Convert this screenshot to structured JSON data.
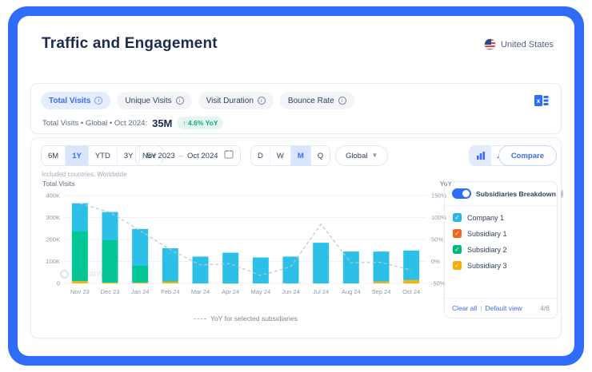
{
  "header": {
    "title": "Traffic and Engagement",
    "country": "United States"
  },
  "tabs": [
    {
      "label": "Total Visits",
      "active": true
    },
    {
      "label": "Unique Visits",
      "active": false
    },
    {
      "label": "Visit Duration",
      "active": false
    },
    {
      "label": "Bounce Rate",
      "active": false
    }
  ],
  "metric": {
    "prefix": "Total Visits • Global • Oct 2024:",
    "value": "35M",
    "badge": "↑ 4.6% YoY"
  },
  "toolbar": {
    "ranges": [
      "6M",
      "1Y",
      "YTD",
      "3Y",
      "5Y"
    ],
    "active_range": "1Y",
    "date_from": "Nov 2023",
    "date_separator": "–",
    "date_to": "Oct 2024",
    "granularities": [
      "D",
      "W",
      "M",
      "Q"
    ],
    "active_granularity": "M",
    "region": "Global",
    "compare_label": "Compare"
  },
  "included_note": "Included countries: Worldwide",
  "chart_data": {
    "type": "bar",
    "stacked": true,
    "categories": [
      "Nov 23",
      "Dec 23",
      "Jan 24",
      "Feb 24",
      "Mar 24",
      "Apr 24",
      "May 24",
      "Jun 24",
      "Jul 24",
      "Aug 24",
      "Sep 24",
      "Oct 24"
    ],
    "unit": "K visits",
    "series": [
      {
        "name": "Subsidiary 3",
        "color": "#ffb100",
        "values": [
          10,
          4,
          4,
          8,
          0,
          0,
          0,
          0,
          0,
          0,
          8,
          15
        ]
      },
      {
        "name": "Subsidiary 2",
        "color": "#00c795",
        "values": [
          228,
          194,
          76,
          6,
          0,
          4,
          0,
          0,
          0,
          0,
          0,
          0
        ]
      },
      {
        "name": "Company 1",
        "color": "#2cc0e8",
        "values": [
          127,
          127,
          168,
          146,
          122,
          136,
          118,
          122,
          185,
          145,
          137,
          135
        ]
      }
    ],
    "totals": [
      365,
      325,
      248,
      160,
      122,
      140,
      118,
      122,
      185,
      145,
      145,
      150
    ],
    "line_series": {
      "name": "YoY for selected subsidiaries",
      "color": "#bcc5d0",
      "dashed": true,
      "values_pct": [
        132,
        112,
        70,
        27,
        -8,
        -5,
        -32,
        -12,
        85,
        -3,
        -2,
        -20
      ]
    },
    "left_axis": {
      "label": "Total Visits",
      "ticks": [
        "400K",
        "300K",
        "200K",
        "100K",
        "0"
      ],
      "max": 400,
      "min": 0
    },
    "right_axis": {
      "label": "YoY",
      "ticks": [
        "150%",
        "100%",
        "50%",
        "0%",
        "-50%"
      ],
      "max": 150,
      "min": -50
    },
    "grid": true,
    "legend_position": "bottom"
  },
  "legend_label": "YoY for selected subsidiaries",
  "watermark": "similarweb",
  "panel": {
    "title": "Subsidiaries Breakdown",
    "toggle_on": true,
    "items": [
      {
        "label": "Company 1",
        "color": "#2ab5e8",
        "checked": true
      },
      {
        "label": "Subsidiary 1",
        "color": "#f4641e",
        "checked": true
      },
      {
        "label": "Subsidiary 2",
        "color": "#00b878",
        "checked": true
      },
      {
        "label": "Subsidiary 3",
        "color": "#ffaa00",
        "checked": true
      }
    ],
    "footer": {
      "clear": "Clear all",
      "separator": "|",
      "default_view": "Default view",
      "count": "4/6"
    }
  }
}
